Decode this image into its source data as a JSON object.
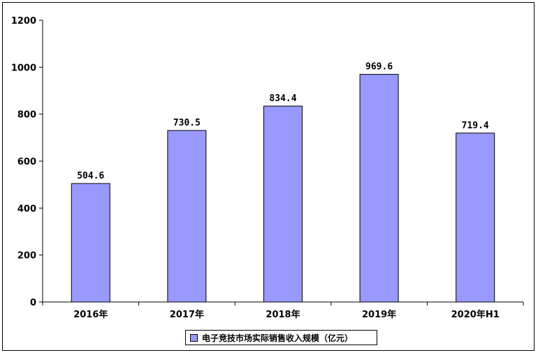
{
  "chart_data": {
    "type": "bar",
    "categories": [
      "2016年",
      "2017年",
      "2018年",
      "2019年",
      "2020年H1"
    ],
    "series": [
      {
        "name": "电子竞技市场实际销售收入规模（亿元）",
        "values": [
          504.6,
          730.5,
          834.4,
          969.6,
          719.4
        ]
      }
    ],
    "data_labels": [
      "504.6",
      "730.5",
      "834.4",
      "969.6",
      "719.4"
    ],
    "title": "",
    "xlabel": "",
    "ylabel": "",
    "ylim": [
      0,
      1200
    ],
    "yticks": [
      "0",
      "200",
      "400",
      "600",
      "800",
      "1000",
      "1200"
    ],
    "grid": false,
    "legend_position": "bottom",
    "bar_color": "#9999ff"
  }
}
